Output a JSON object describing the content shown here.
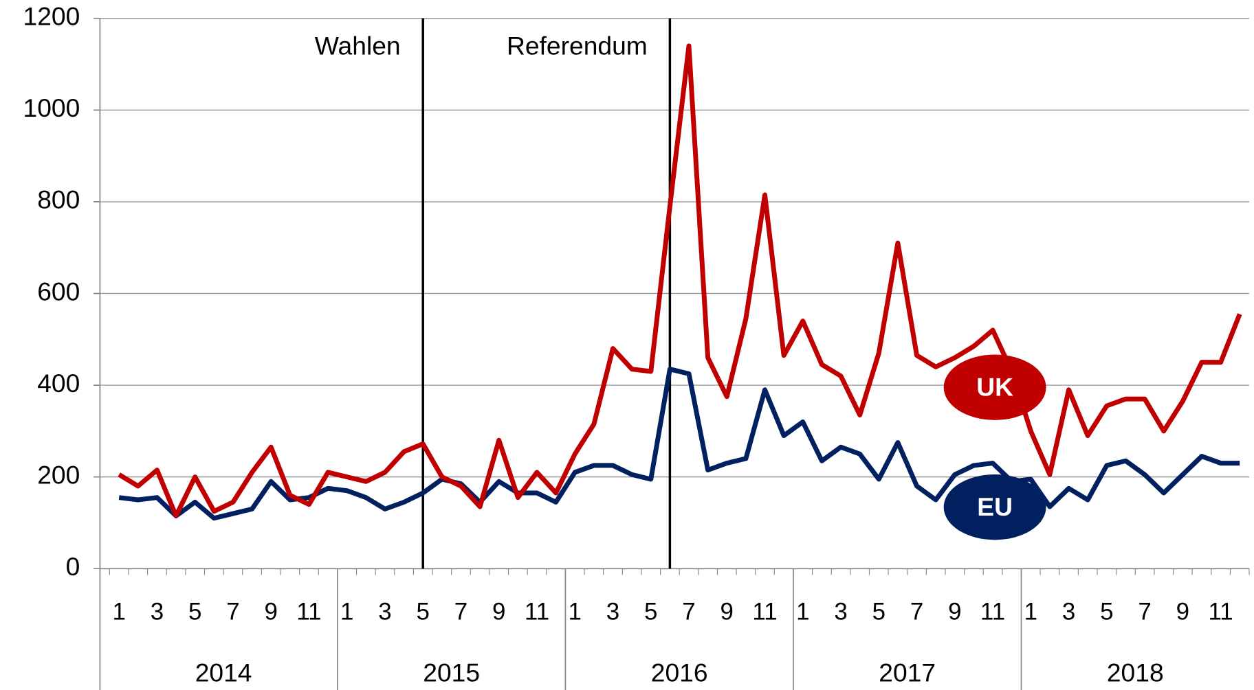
{
  "chart_data": {
    "type": "line",
    "categories": [
      "1",
      null,
      "3",
      null,
      "5",
      null,
      "7",
      null,
      "9",
      null,
      "11",
      null,
      "1",
      null,
      "3",
      null,
      "5",
      null,
      "7",
      null,
      "9",
      null,
      "11",
      null,
      "1",
      null,
      "3",
      null,
      "5",
      null,
      "7",
      null,
      "9",
      null,
      "11",
      null,
      "1",
      null,
      "3",
      null,
      "5",
      null,
      "7",
      null,
      "9",
      null,
      "11",
      null,
      "1",
      null,
      "3",
      null,
      "5",
      null,
      "7",
      null,
      "9",
      null,
      "11",
      null
    ],
    "years": [
      "2014",
      "2015",
      "2016",
      "2017",
      "2018"
    ],
    "series": [
      {
        "name": "UK",
        "color": "#c00000",
        "values": [
          205,
          180,
          215,
          115,
          200,
          125,
          145,
          210,
          265,
          160,
          140,
          210,
          200,
          190,
          210,
          255,
          272,
          200,
          180,
          135,
          280,
          155,
          210,
          165,
          250,
          315,
          480,
          435,
          430,
          790,
          1140,
          460,
          375,
          545,
          815,
          465,
          540,
          445,
          420,
          335,
          470,
          710,
          465,
          440,
          460,
          485,
          520,
          430,
          300,
          205,
          390,
          290,
          355,
          370,
          370,
          300,
          365,
          450,
          450,
          555
        ]
      },
      {
        "name": "EU",
        "color": "#002060",
        "values": [
          155,
          150,
          155,
          115,
          145,
          110,
          120,
          130,
          190,
          150,
          155,
          175,
          170,
          155,
          130,
          145,
          165,
          195,
          185,
          145,
          190,
          165,
          165,
          145,
          210,
          225,
          225,
          205,
          195,
          435,
          425,
          215,
          230,
          240,
          390,
          290,
          320,
          235,
          265,
          250,
          195,
          275,
          180,
          150,
          205,
          225,
          230,
          190,
          195,
          135,
          175,
          150,
          225,
          235,
          205,
          165,
          205,
          245,
          230,
          230
        ]
      }
    ],
    "annotations": [
      {
        "text": "Wahlen",
        "at": 16
      },
      {
        "text": "Referendum",
        "at": 29
      }
    ],
    "ylim": [
      0,
      1200
    ],
    "yticks": [
      0,
      200,
      400,
      600,
      800,
      1000,
      1200
    ],
    "grid": true
  }
}
